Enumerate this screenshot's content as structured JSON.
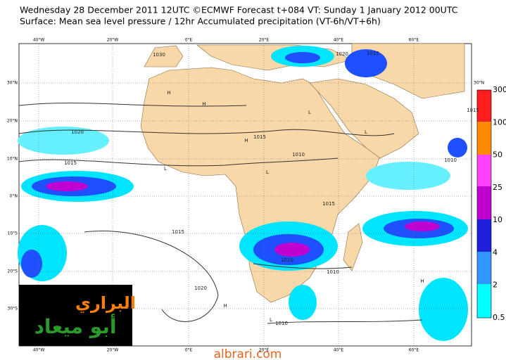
{
  "header": {
    "line1": "Wednesday 28 December 2011 12UTC ©ECMWF Forecast t+084 VT: Sunday 1 January 2012 00UTC",
    "line2": "Surface: Mean sea level pressure / 12hr Accumulated precipitation (VT-6h/VT+6h)"
  },
  "map": {
    "lon_labels": [
      "40°W",
      "20°W",
      "0°E",
      "20°E",
      "40°E",
      "60°E"
    ],
    "lat_labels": [
      "30°N",
      "20°N",
      "10°N",
      "0°N",
      "10°S",
      "20°S",
      "30°S"
    ],
    "isobar_labels": [
      "1030",
      "1020",
      "1015",
      "1015",
      "1010",
      "1015",
      "1020",
      "1010",
      "1010",
      "1015",
      "1015",
      "1010",
      "1020",
      "1015",
      "1010"
    ],
    "pressure_centers": [
      "H",
      "H",
      "L",
      "L",
      "H",
      "L",
      "L",
      "H",
      "L",
      "H"
    ]
  },
  "colorbar": {
    "levels": [
      0.5,
      2,
      4,
      10,
      25,
      50,
      100,
      300
    ]
  },
  "watermark": {
    "arabic_line1": "البراري",
    "arabic_line2": "أبو ميعاد",
    "site": "albrari.com"
  }
}
